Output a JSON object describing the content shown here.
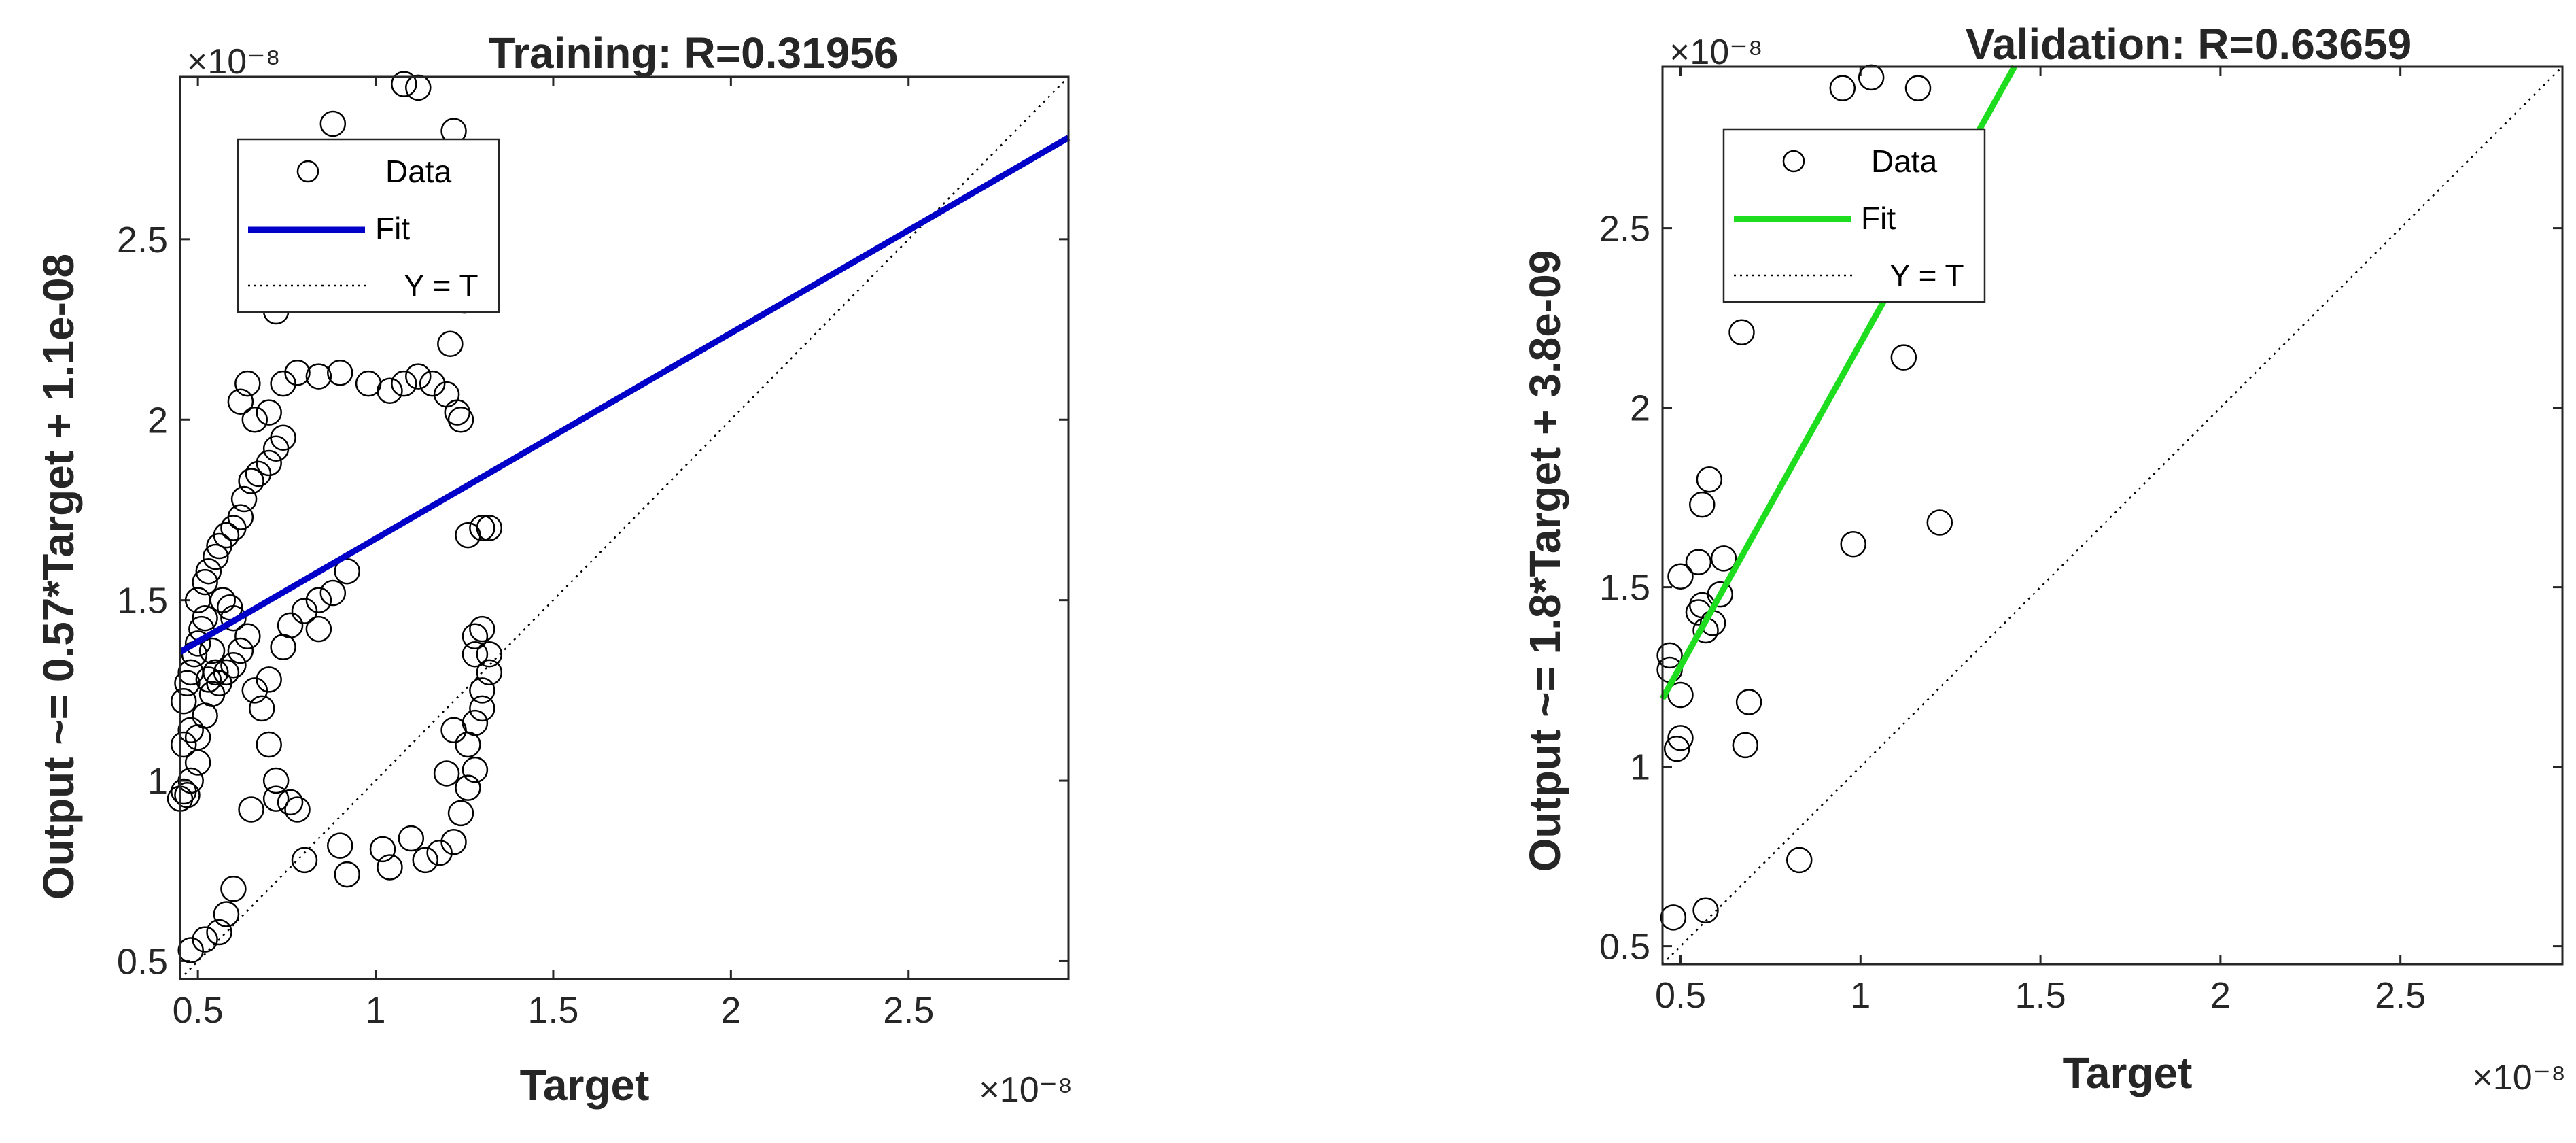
{
  "chart_data": [
    {
      "type": "scatter",
      "title": "Training: R=0.31956",
      "xlabel": "Target",
      "ylabel": "Output ~= 0.57*Target + 1.1e-08",
      "x_exponent_label": "×10⁻⁸",
      "y_exponent_label": "×10⁻⁸",
      "xlim": [
        0.45,
        2.95
      ],
      "ylim": [
        0.45,
        2.95
      ],
      "xticks": [
        "0.5",
        "1",
        "1.5",
        "2",
        "2.5"
      ],
      "yticks": [
        "0.5",
        "1",
        "1.5",
        "2",
        "2.5"
      ],
      "xtick_values": [
        0.5,
        1,
        1.5,
        2,
        2.5
      ],
      "ytick_values": [
        0.5,
        1,
        1.5,
        2,
        2.5
      ],
      "grid": false,
      "legend_position": "top-left",
      "legend": [
        "Data",
        "Fit",
        "Y = T"
      ],
      "fit": {
        "slope": 0.57,
        "intercept": 1.1,
        "color": "#0000C8"
      },
      "identity_line": {
        "color": "#000000",
        "style": "dotted"
      },
      "series": [
        {
          "name": "Data",
          "marker": "circle-open",
          "points": [
            [
              0.45,
              0.95
            ],
            [
              0.46,
              0.97
            ],
            [
              0.47,
              0.96
            ],
            [
              0.48,
              1.0
            ],
            [
              0.46,
              1.22
            ],
            [
              0.47,
              1.27
            ],
            [
              0.48,
              1.3
            ],
            [
              0.49,
              1.35
            ],
            [
              0.5,
              1.38
            ],
            [
              0.51,
              1.42
            ],
            [
              0.52,
              1.45
            ],
            [
              0.5,
              1.5
            ],
            [
              0.52,
              1.55
            ],
            [
              0.53,
              1.58
            ],
            [
              0.55,
              1.62
            ],
            [
              0.56,
              1.65
            ],
            [
              0.58,
              1.68
            ],
            [
              0.6,
              1.7
            ],
            [
              0.62,
              1.73
            ],
            [
              0.63,
              1.78
            ],
            [
              0.65,
              1.83
            ],
            [
              0.67,
              1.85
            ],
            [
              0.7,
              1.88
            ],
            [
              0.72,
              1.92
            ],
            [
              0.74,
              1.95
            ],
            [
              0.66,
              2.0
            ],
            [
              0.62,
              2.05
            ],
            [
              0.64,
              2.1
            ],
            [
              0.7,
              2.02
            ],
            [
              0.74,
              2.1
            ],
            [
              0.78,
              2.13
            ],
            [
              0.84,
              2.12
            ],
            [
              0.9,
              2.13
            ],
            [
              0.98,
              2.1
            ],
            [
              1.04,
              2.08
            ],
            [
              1.08,
              2.1
            ],
            [
              1.12,
              2.12
            ],
            [
              1.16,
              2.1
            ],
            [
              1.2,
              2.07
            ],
            [
              1.23,
              2.02
            ],
            [
              1.24,
              2.0
            ],
            [
              1.21,
              2.21
            ],
            [
              1.25,
              2.33
            ],
            [
              0.88,
              2.82
            ],
            [
              1.08,
              2.93
            ],
            [
              1.12,
              2.92
            ],
            [
              1.22,
              2.8
            ],
            [
              0.72,
              2.3
            ],
            [
              0.5,
              1.12
            ],
            [
              0.52,
              1.18
            ],
            [
              0.54,
              1.24
            ],
            [
              0.56,
              1.27
            ],
            [
              0.58,
              1.3
            ],
            [
              0.6,
              1.32
            ],
            [
              0.62,
              1.36
            ],
            [
              0.64,
              1.4
            ],
            [
              0.66,
              1.25
            ],
            [
              0.68,
              1.2
            ],
            [
              0.7,
              1.1
            ],
            [
              0.72,
              1.0
            ],
            [
              0.76,
              0.94
            ],
            [
              0.78,
              0.92
            ],
            [
              0.72,
              0.95
            ],
            [
              0.65,
              0.92
            ],
            [
              0.7,
              1.28
            ],
            [
              0.74,
              1.37
            ],
            [
              0.76,
              1.43
            ],
            [
              0.8,
              1.47
            ],
            [
              0.84,
              1.5
            ],
            [
              0.88,
              1.52
            ],
            [
              0.92,
              1.58
            ],
            [
              0.84,
              1.42
            ],
            [
              0.48,
              0.53
            ],
            [
              0.52,
              0.56
            ],
            [
              0.56,
              0.58
            ],
            [
              0.58,
              0.63
            ],
            [
              0.6,
              0.7
            ],
            [
              0.8,
              0.78
            ],
            [
              0.9,
              0.82
            ],
            [
              0.92,
              0.74
            ],
            [
              1.02,
              0.81
            ],
            [
              1.04,
              0.76
            ],
            [
              1.1,
              0.84
            ],
            [
              1.14,
              0.78
            ],
            [
              1.18,
              0.8
            ],
            [
              1.22,
              0.83
            ],
            [
              1.24,
              0.91
            ],
            [
              1.26,
              0.98
            ],
            [
              1.2,
              1.02
            ],
            [
              1.28,
              1.03
            ],
            [
              1.26,
              1.1
            ],
            [
              1.22,
              1.14
            ],
            [
              1.28,
              1.16
            ],
            [
              1.3,
              1.2
            ],
            [
              1.3,
              1.25
            ],
            [
              1.32,
              1.3
            ],
            [
              1.28,
              1.35
            ],
            [
              1.32,
              1.35
            ],
            [
              1.28,
              1.4
            ],
            [
              1.3,
              1.42
            ],
            [
              1.26,
              1.68
            ],
            [
              1.3,
              1.7
            ],
            [
              1.32,
              1.7
            ],
            [
              0.48,
              1.14
            ],
            [
              0.5,
              1.05
            ],
            [
              0.46,
              1.1
            ],
            [
              0.55,
              1.3
            ],
            [
              0.6,
              1.45
            ],
            [
              0.57,
              1.5
            ],
            [
              0.54,
              1.36
            ],
            [
              0.59,
              1.48
            ],
            [
              0.53,
              1.28
            ]
          ]
        }
      ]
    },
    {
      "type": "scatter",
      "title": "Validation: R=0.63659",
      "xlabel": "Target",
      "ylabel": "Output ~= 1.8*Target + 3.8e-09",
      "x_exponent_label": "×10⁻⁸",
      "y_exponent_label": "×10⁻⁸",
      "xlim": [
        0.45,
        2.95
      ],
      "ylim": [
        0.45,
        2.95
      ],
      "xticks": [
        "0.5",
        "1",
        "1.5",
        "2",
        "2.5"
      ],
      "yticks": [
        "0.5",
        "1",
        "1.5",
        "2",
        "2.5"
      ],
      "xtick_values": [
        0.5,
        1,
        1.5,
        2,
        2.5
      ],
      "ytick_values": [
        0.5,
        1,
        1.5,
        2,
        2.5
      ],
      "grid": false,
      "legend_position": "top-left",
      "legend": [
        "Data",
        "Fit",
        "Y = T"
      ],
      "fit": {
        "slope": 1.8,
        "intercept": 0.38,
        "color": "#1EDC1E"
      },
      "identity_line": {
        "color": "#000000",
        "style": "dotted"
      },
      "series": [
        {
          "name": "Data",
          "marker": "circle-open",
          "points": [
            [
              0.48,
              0.58
            ],
            [
              0.57,
              0.6
            ],
            [
              0.83,
              0.74
            ],
            [
              0.49,
              1.05
            ],
            [
              0.5,
              1.08
            ],
            [
              0.68,
              1.06
            ],
            [
              0.69,
              1.18
            ],
            [
              0.5,
              1.2
            ],
            [
              0.47,
              1.27
            ],
            [
              0.47,
              1.31
            ],
            [
              0.57,
              1.38
            ],
            [
              0.59,
              1.4
            ],
            [
              0.55,
              1.43
            ],
            [
              0.56,
              1.45
            ],
            [
              0.61,
              1.48
            ],
            [
              0.5,
              1.53
            ],
            [
              0.55,
              1.57
            ],
            [
              0.62,
              1.58
            ],
            [
              0.98,
              1.62
            ],
            [
              1.22,
              1.68
            ],
            [
              0.56,
              1.73
            ],
            [
              0.58,
              1.8
            ],
            [
              1.12,
              2.14
            ],
            [
              0.67,
              2.21
            ],
            [
              0.95,
              2.89
            ],
            [
              1.03,
              2.92
            ],
            [
              1.16,
              2.89
            ]
          ]
        }
      ]
    }
  ]
}
